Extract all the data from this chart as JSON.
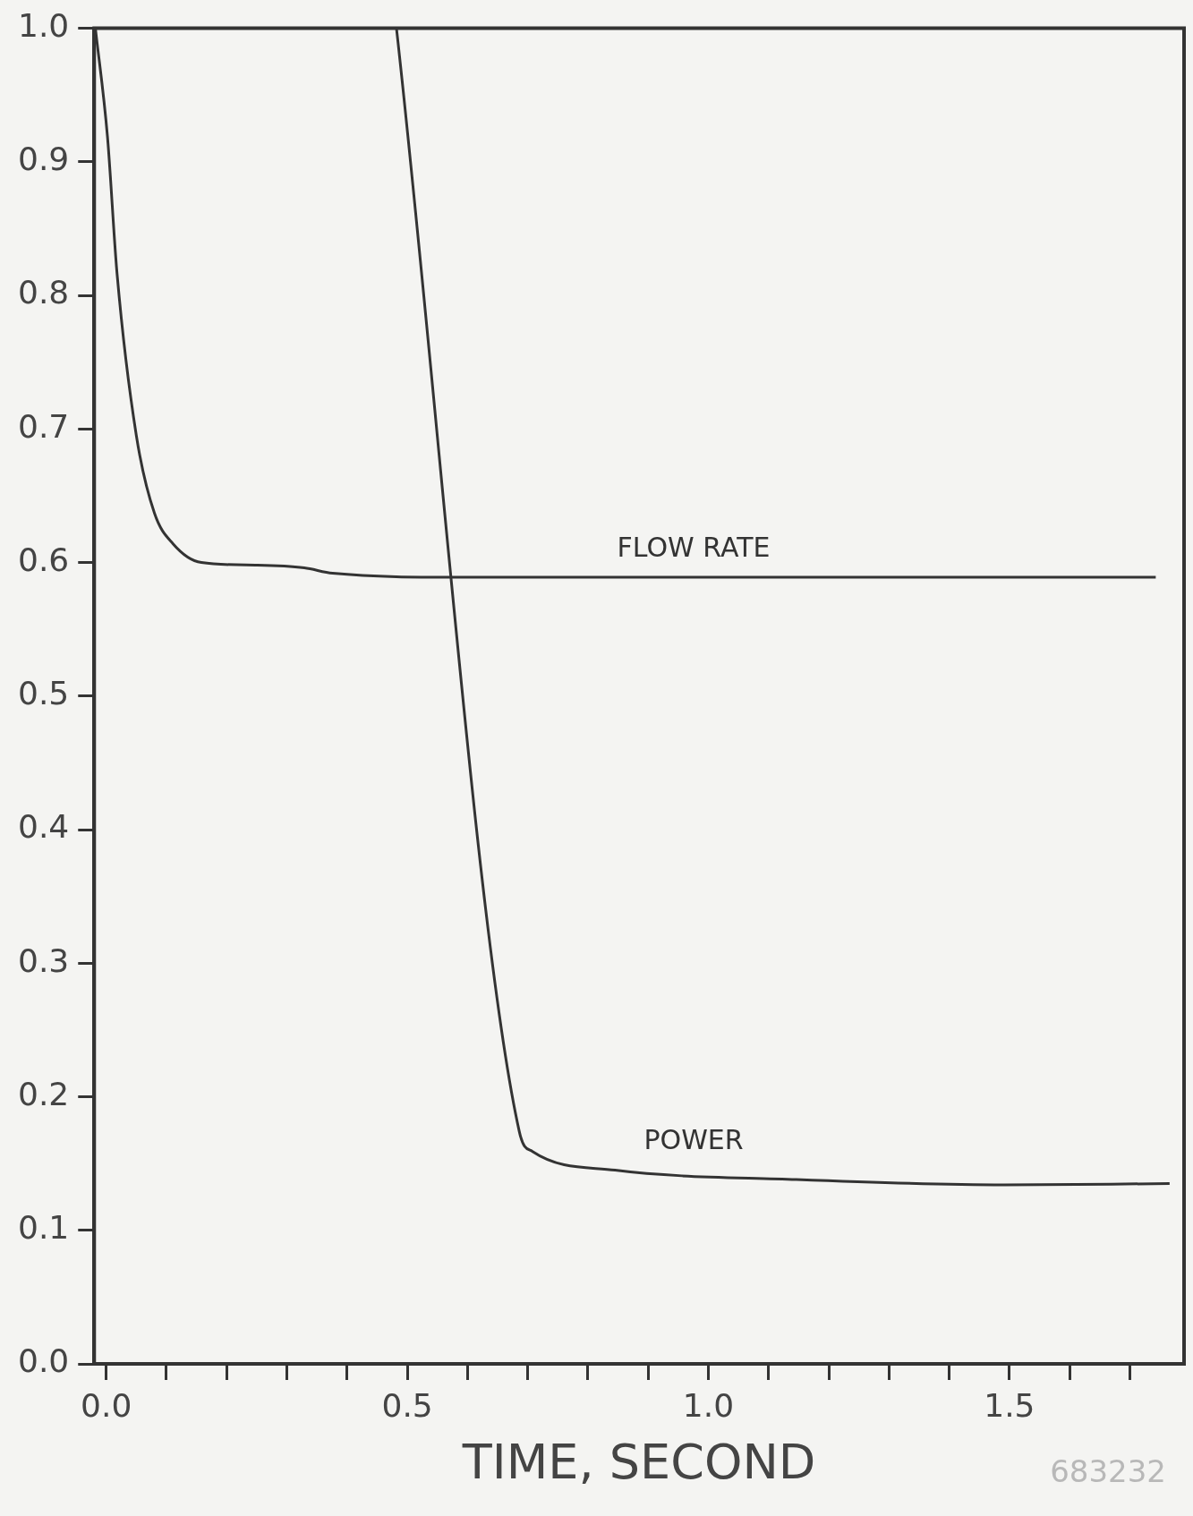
{
  "chart_data": {
    "type": "line",
    "xlabel": "TIME, SECOND",
    "xlim": [
      -0.02,
      1.79
    ],
    "ylim": [
      0,
      1
    ],
    "xticks": [
      {
        "value": 0,
        "label": "0.0"
      },
      {
        "value": 0.1,
        "label": null
      },
      {
        "value": 0.2,
        "label": null
      },
      {
        "value": 0.3,
        "label": null
      },
      {
        "value": 0.4,
        "label": null
      },
      0.5,
      {
        "value": 0.6,
        "label": null
      },
      {
        "value": 0.7,
        "label": null
      },
      {
        "value": 0.8,
        "label": null
      },
      {
        "value": 0.9,
        "label": null
      },
      {
        "value": 1,
        "label": "1.0"
      },
      {
        "value": 1.1,
        "label": null
      },
      {
        "value": 1.2,
        "label": null
      },
      {
        "value": 1.3,
        "label": null
      },
      {
        "value": 1.4,
        "label": null
      },
      1.5,
      {
        "value": 1.6,
        "label": null
      },
      {
        "value": 1.7,
        "label": null
      }
    ],
    "yticks": [
      {
        "value": 0,
        "label": "0.0"
      },
      0.1,
      0.2,
      0.3,
      0.4,
      0.5,
      0.6,
      0.7,
      0.8,
      0.9,
      {
        "value": 1,
        "label": "1.0"
      }
    ],
    "series": [
      {
        "name": "FLOW RATE",
        "color": "#333333",
        "x": [
          -0.018,
          0.002,
          0.018,
          0.05,
          0.08,
          0.111,
          0.158,
          0.251,
          0.329,
          0.376,
          0.587,
          1.0,
          1.743
        ],
        "values": [
          1.0,
          0.919,
          0.816,
          0.695,
          0.637,
          0.614,
          0.6,
          0.598,
          0.596,
          0.592,
          0.589,
          0.589,
          0.589
        ]
      },
      {
        "name": "POWER",
        "color": "#333333",
        "x": [
          0.482,
          0.686,
          0.708,
          0.845,
          1.146,
          1.491,
          1.766
        ],
        "values": [
          1.0,
          0.174,
          0.159,
          0.145,
          0.138,
          0.134,
          0.135
        ]
      }
    ],
    "marker": "none",
    "line_style": "solid",
    "legend": false,
    "annotations": [
      "683232"
    ]
  }
}
